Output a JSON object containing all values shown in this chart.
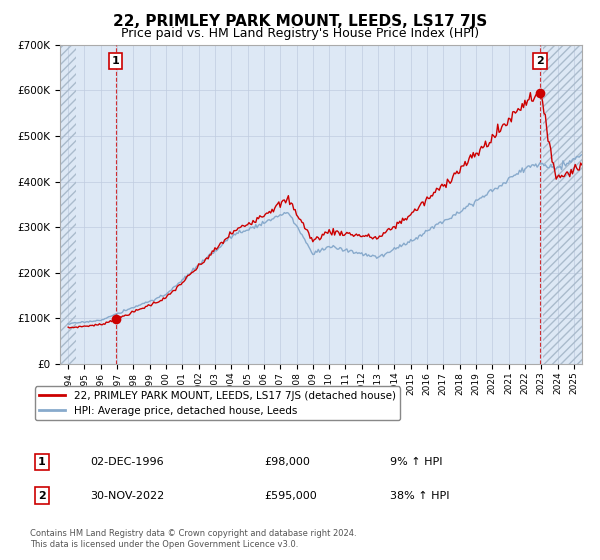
{
  "title": "22, PRIMLEY PARK MOUNT, LEEDS, LS17 7JS",
  "subtitle": "Price paid vs. HM Land Registry's House Price Index (HPI)",
  "legend_line1": "22, PRIMLEY PARK MOUNT, LEEDS, LS17 7JS (detached house)",
  "legend_line2": "HPI: Average price, detached house, Leeds",
  "annotation1_label": "1",
  "annotation1_date": "02-DEC-1996",
  "annotation1_price": "£98,000",
  "annotation1_hpi": "9% ↑ HPI",
  "annotation2_label": "2",
  "annotation2_date": "30-NOV-2022",
  "annotation2_price": "£595,000",
  "annotation2_hpi": "38% ↑ HPI",
  "footnote": "Contains HM Land Registry data © Crown copyright and database right 2024.\nThis data is licensed under the Open Government Licence v3.0.",
  "sale1_x": 1996.92,
  "sale1_y": 98000,
  "sale2_x": 2022.92,
  "sale2_y": 595000,
  "line_color_property": "#cc0000",
  "line_color_hpi": "#88aacc",
  "sale_marker_color": "#cc0000",
  "background_color": "#dde8f5",
  "hatch_color": "#aabbcc",
  "ylim": [
    0,
    700000
  ],
  "xlim_left": 1993.5,
  "xlim_right": 2025.5,
  "hatch_left_end": 1994.5,
  "hatch_right_start": 2023.08,
  "grid_color": "#c0cce0",
  "title_fontsize": 11,
  "subtitle_fontsize": 9
}
